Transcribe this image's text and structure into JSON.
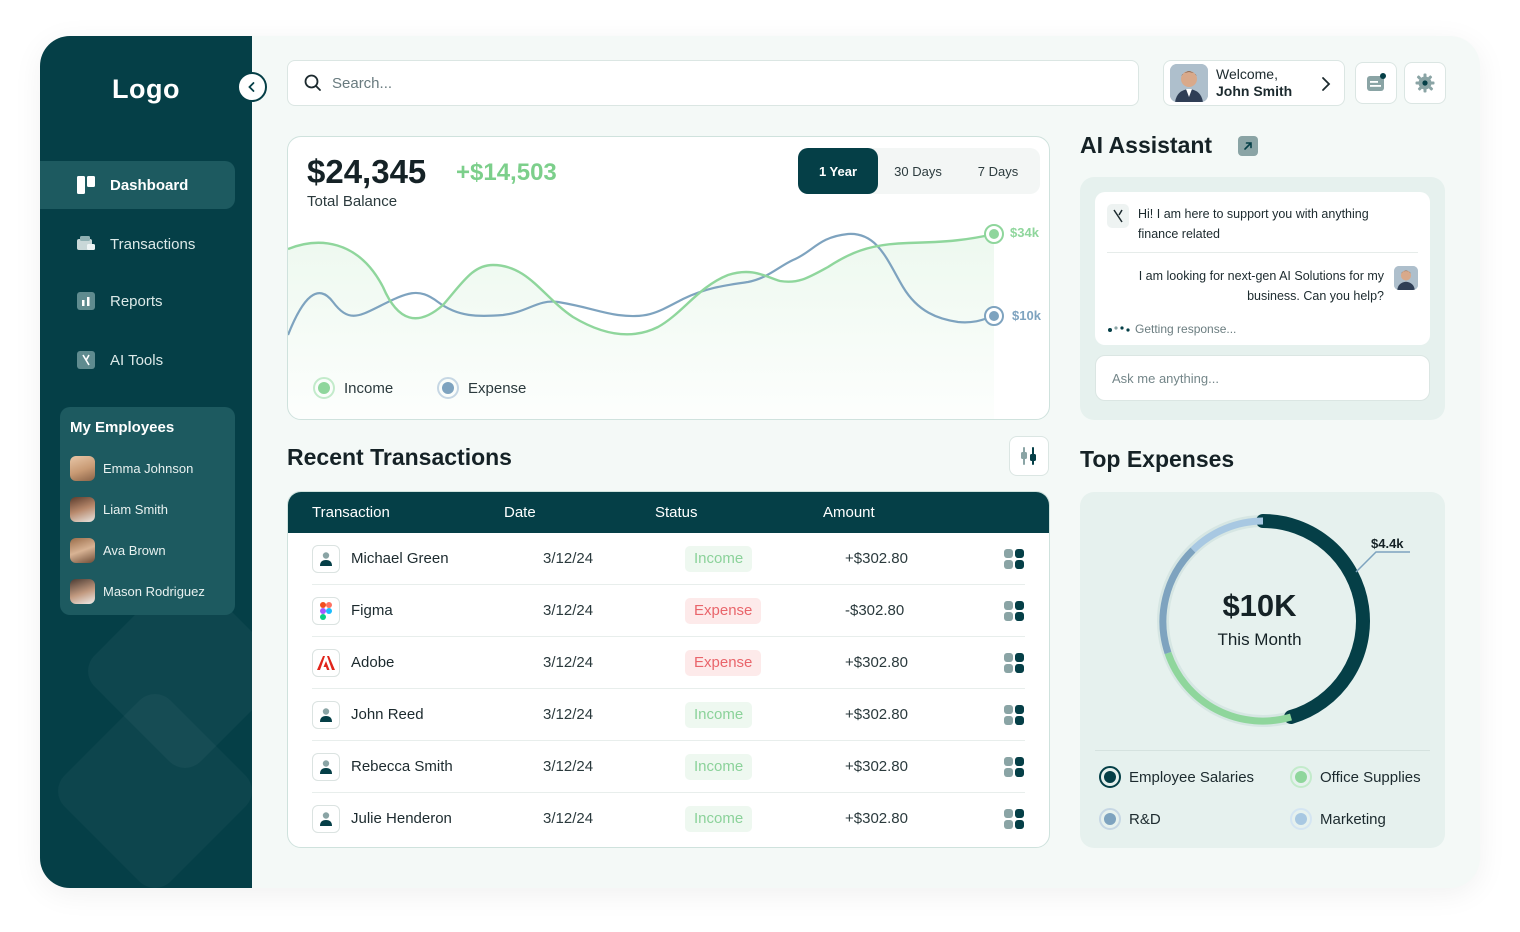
{
  "sidebar": {
    "logo": "Logo",
    "nav": [
      {
        "label": "Dashboard",
        "icon": "dashboard-icon",
        "active": true
      },
      {
        "label": "Transactions",
        "icon": "wallet-icon"
      },
      {
        "label": "Reports",
        "icon": "bar-chart-icon"
      },
      {
        "label": "AI Tools",
        "icon": "ai-icon"
      }
    ],
    "employees_title": "My Employees",
    "employees": [
      {
        "name": "Emma Johnson"
      },
      {
        "name": "Liam Smith"
      },
      {
        "name": "Ava Brown"
      },
      {
        "name": "Mason Rodriguez"
      }
    ]
  },
  "header": {
    "search_placeholder": "Search...",
    "welcome": "Welcome,",
    "user_name": "John Smith"
  },
  "balance": {
    "amount": "$24,345",
    "change": "+$14,503",
    "label": "Total Balance",
    "ranges": [
      "1 Year",
      "30 Days",
      "7 Days"
    ],
    "active_range": "1 Year",
    "income_end_label": "$34k",
    "expense_end_label": "$10k",
    "legend_income": "Income",
    "legend_expense": "Expense",
    "colors": {
      "income": "#8fd69c",
      "expense": "#7ea3bf"
    }
  },
  "transactions": {
    "title": "Recent Transactions",
    "columns": [
      "Transaction",
      "Date",
      "Status",
      "Amount"
    ],
    "rows": [
      {
        "name": "Michael Green",
        "date": "3/12/24",
        "status": "Income",
        "amount": "+$302.80",
        "icon": "person-icon"
      },
      {
        "name": "Figma",
        "date": "3/12/24",
        "status": "Expense",
        "amount": "-$302.80",
        "icon": "figma-icon"
      },
      {
        "name": "Adobe",
        "date": "3/12/24",
        "status": "Expense",
        "amount": "+$302.80",
        "icon": "adobe-icon"
      },
      {
        "name": "John Reed",
        "date": "3/12/24",
        "status": "Income",
        "amount": "+$302.80",
        "icon": "person-icon"
      },
      {
        "name": "Rebecca Smith",
        "date": "3/12/24",
        "status": "Income",
        "amount": "+$302.80",
        "icon": "person-icon"
      },
      {
        "name": "Julie Henderon",
        "date": "3/12/24",
        "status": "Income",
        "amount": "+$302.80",
        "icon": "person-icon"
      }
    ]
  },
  "ai_assistant": {
    "title": "AI Assistant",
    "bot_message": "Hi! I am here to support you with anything finance related",
    "user_message": "I am looking for next-gen AI Solutions for my business. Can you help?",
    "status": "Getting response...",
    "input_placeholder": "Ask me anything..."
  },
  "top_expenses": {
    "title": "Top Expenses",
    "total": "$10K",
    "period": "This Month",
    "callout": "$4.4k",
    "legend": [
      {
        "label": "Employee Salaries",
        "color": "#053f47"
      },
      {
        "label": "Office Supplies",
        "color": "#8fd69c"
      },
      {
        "label": "R&D",
        "color": "#7ea3bf"
      },
      {
        "label": "Marketing",
        "color": "#a8c8e2"
      }
    ]
  }
}
